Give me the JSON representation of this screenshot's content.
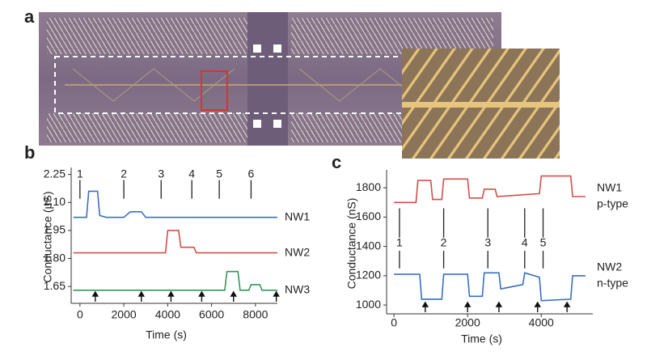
{
  "panel_labels": [
    "a",
    "b",
    "c"
  ],
  "chart_data": [
    {
      "type": "line",
      "xlabel": "Time (s)",
      "ylabel": "Conductance (µS)",
      "xlim": [
        -400,
        9000
      ],
      "ylim": [
        1.56,
        2.27
      ],
      "xticks": [
        0,
        2000,
        4000,
        6000,
        8000
      ],
      "yticks": [
        2.25,
        {
          "value": 2.1,
          "label": "2.10"
        },
        1.95,
        {
          "value": 1.8,
          "label": "1.80"
        },
        1.65
      ],
      "series": [
        {
          "name": "NW1",
          "color": "#3a6fc0",
          "x": [
            -300,
            300,
            400,
            800,
            900,
            1200,
            2000,
            2300,
            2800,
            3000,
            9000
          ],
          "values": [
            2.02,
            2.02,
            2.16,
            2.16,
            2.03,
            2.02,
            2.02,
            2.05,
            2.05,
            2.02,
            2.02
          ]
        },
        {
          "name": "NW2",
          "color": "#d0504a",
          "x": [
            -300,
            3900,
            4000,
            4500,
            4600,
            5200,
            5300,
            9000
          ],
          "values": [
            1.83,
            1.83,
            1.95,
            1.95,
            1.86,
            1.86,
            1.83,
            1.83
          ]
        },
        {
          "name": "NW3",
          "color": "#2e9a5a",
          "x": [
            -300,
            6600,
            6700,
            7200,
            7300,
            7700,
            7800,
            8200,
            8300,
            9000
          ],
          "values": [
            1.63,
            1.63,
            1.73,
            1.73,
            1.63,
            1.63,
            1.66,
            1.66,
            1.63,
            1.63
          ]
        }
      ],
      "events": [
        {
          "label": "1",
          "x": 0
        },
        {
          "label": "2",
          "x": 2000
        },
        {
          "label": "3",
          "x": 3700
        },
        {
          "label": "4",
          "x": 5100
        },
        {
          "label": "5",
          "x": 6350
        },
        {
          "label": "6",
          "x": 7800
        }
      ],
      "arrows_x": [
        700,
        2800,
        4150,
        5550,
        7000,
        8950
      ]
    },
    {
      "type": "line",
      "xlabel": "Time (s)",
      "ylabel": "Conductance (nS)",
      "xlim": [
        -200,
        5400
      ],
      "ylim": [
        940,
        1900
      ],
      "xticks": [
        0,
        2000,
        4000
      ],
      "yticks": [
        1800,
        1600,
        1400,
        1200,
        1000
      ],
      "series": [
        {
          "name": "NW1",
          "doping": "p-type",
          "color": "#d0504a",
          "x": [
            0,
            600,
            650,
            1000,
            1050,
            1300,
            1350,
            2000,
            2050,
            2400,
            2450,
            2750,
            2800,
            3950,
            4000,
            4800,
            4850,
            5200
          ],
          "values": [
            1700,
            1700,
            1850,
            1850,
            1720,
            1720,
            1860,
            1860,
            1730,
            1730,
            1790,
            1790,
            1740,
            1760,
            1880,
            1880,
            1740,
            1740
          ]
        },
        {
          "name": "NW2",
          "doping": "n-type",
          "color": "#3a6fc0",
          "x": [
            0,
            700,
            750,
            1300,
            1350,
            2000,
            2050,
            2400,
            2450,
            2850,
            2900,
            3500,
            3550,
            3950,
            4000,
            4800,
            4850,
            5200
          ],
          "values": [
            1210,
            1210,
            1040,
            1040,
            1210,
            1210,
            1060,
            1060,
            1220,
            1220,
            1110,
            1140,
            1220,
            1190,
            1030,
            1040,
            1200,
            1200
          ]
        }
      ],
      "events": [
        {
          "label": "1",
          "x": 150
        },
        {
          "label": "2",
          "x": 1350
        },
        {
          "label": "3",
          "x": 2550
        },
        {
          "label": "4",
          "x": 3550
        },
        {
          "label": "5",
          "x": 4050
        }
      ],
      "arrows_x": [
        850,
        2000,
        2850,
        3900,
        4700
      ]
    }
  ]
}
